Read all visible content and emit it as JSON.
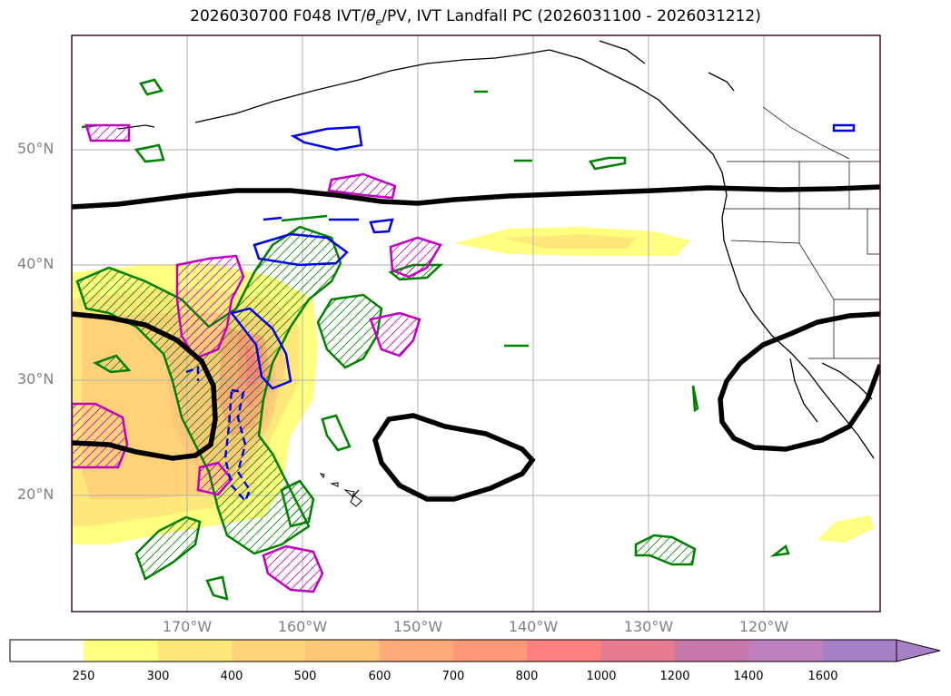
{
  "title": {
    "main": "2026030700 F048 IVT/",
    "theta_sym": "θ",
    "theta_sub": "e",
    "rest": "/PV, IVT Landfall PC (2026031100 - 2026031212)"
  },
  "axes": {
    "lat_labels": [
      "50°N",
      "40°N",
      "30°N",
      "20°N"
    ],
    "lon_labels": [
      "170°W",
      "160°W",
      "150°W",
      "140°W",
      "130°W",
      "120°W"
    ]
  },
  "colorbar": {
    "ticks": [
      "250",
      "300",
      "400",
      "500",
      "600",
      "700",
      "800",
      "1000",
      "1200",
      "1400",
      "1600"
    ],
    "colors": [
      "#ffffff",
      "#ffff80",
      "#ffe87a",
      "#ffd27a",
      "#ffc878",
      "#ffaa78",
      "#ff9878",
      "#ff8080",
      "#e67a90",
      "#c878aa",
      "#c080c0",
      "#a880c8"
    ],
    "extend": "max"
  },
  "contour_colors": {
    "landfall_pc": "#000000",
    "positive_pv": "#008000",
    "theta_e": "#c000c0",
    "negative": "#0000e0"
  }
}
